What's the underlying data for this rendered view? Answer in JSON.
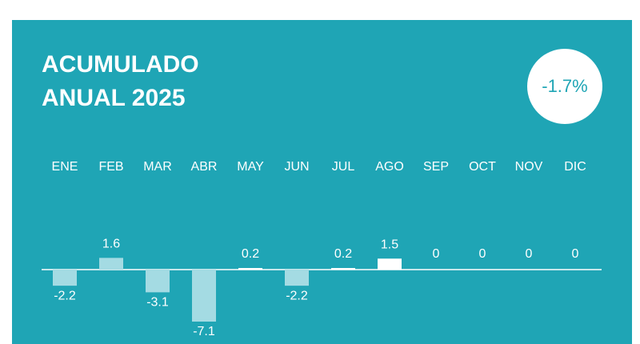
{
  "chart_data": {
    "type": "bar",
    "title": [
      "ACUMULADO",
      "ANUAL 2025"
    ],
    "annotation": "-1.7%",
    "categories": [
      "ENE",
      "FEB",
      "MAR",
      "ABR",
      "MAY",
      "JUN",
      "JUL",
      "AGO",
      "SEP",
      "OCT",
      "NOV",
      "DIC"
    ],
    "values": [
      -2.2,
      1.6,
      -3.1,
      -7.1,
      0.2,
      -2.2,
      0.2,
      1.5,
      0,
      0,
      0,
      0
    ],
    "colors": [
      "#a4dbe3",
      "#a4dbe3",
      "#a4dbe3",
      "#a4dbe3",
      "#ffffff",
      "#a4dbe3",
      "#ffffff",
      "#ffffff",
      "#ffffff",
      "#ffffff",
      "#ffffff",
      "#ffffff"
    ]
  }
}
